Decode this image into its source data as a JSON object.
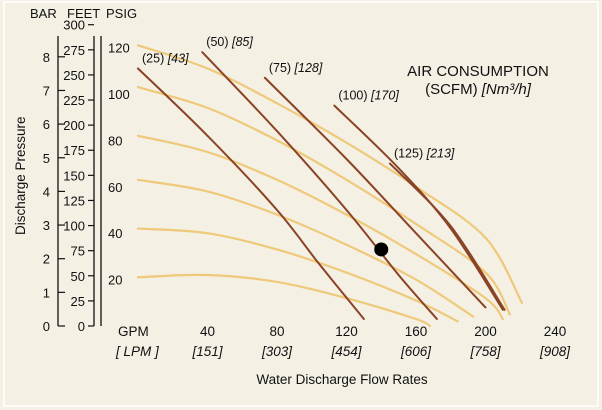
{
  "chart_data": {
    "type": "line",
    "title": "AIR CONSUMPTION",
    "subtitle_main": "(SCFM) ",
    "subtitle_unit": "[Nm³/h]",
    "xlabel": "Water Discharge Flow Rates",
    "ylabel": "Discharge Pressure",
    "x_unit_top": "GPM",
    "x_unit_bottom": "[ LPM ]",
    "xlim": [
      0,
      240
    ],
    "x_ticks": [
      {
        "gpm": "40",
        "lpm": "[151]",
        "v": 40
      },
      {
        "gpm": "80",
        "lpm": "[303]",
        "v": 80
      },
      {
        "gpm": "120",
        "lpm": "[454]",
        "v": 120
      },
      {
        "gpm": "160",
        "lpm": "[606]",
        "v": 160
      },
      {
        "gpm": "200",
        "lpm": "[758]",
        "v": 200
      },
      {
        "gpm": "240",
        "lpm": "[908]",
        "v": 240
      }
    ],
    "axis_headers": {
      "bar": "BAR",
      "feet": "FEET",
      "psig": "PSIG"
    },
    "ylim_psig": [
      0,
      125
    ],
    "bar_ticks": [
      "0",
      "1",
      "2",
      "3",
      "4",
      "5",
      "6",
      "7",
      "8"
    ],
    "feet_ticks": [
      "0",
      "25",
      "50",
      "75",
      "100",
      "125",
      "150",
      "175",
      "200",
      "225",
      "250",
      "275",
      "300"
    ],
    "psig_ticks": [
      "20",
      "40",
      "60",
      "80",
      "100",
      "120"
    ],
    "psig_tick_values": [
      20,
      40,
      60,
      80,
      100,
      120
    ],
    "pressure_curves": [
      {
        "psig": 120,
        "points": [
          [
            0,
            121
          ],
          [
            40,
            111
          ],
          [
            80,
            96
          ],
          [
            120,
            79
          ],
          [
            160,
            60
          ],
          [
            200,
            38
          ],
          [
            221,
            10
          ]
        ]
      },
      {
        "psig": 100,
        "points": [
          [
            0,
            103
          ],
          [
            40,
            94
          ],
          [
            80,
            80
          ],
          [
            120,
            63
          ],
          [
            160,
            44
          ],
          [
            200,
            23
          ],
          [
            214,
            5
          ]
        ]
      },
      {
        "psig": 80,
        "points": [
          [
            0,
            82
          ],
          [
            40,
            75
          ],
          [
            80,
            63
          ],
          [
            120,
            48
          ],
          [
            160,
            31
          ],
          [
            200,
            12
          ],
          [
            210,
            3
          ]
        ]
      },
      {
        "psig": 60,
        "points": [
          [
            0,
            63
          ],
          [
            40,
            58
          ],
          [
            80,
            48
          ],
          [
            120,
            35
          ],
          [
            160,
            20
          ],
          [
            193,
            4
          ]
        ]
      },
      {
        "psig": 40,
        "points": [
          [
            0,
            42
          ],
          [
            40,
            40
          ],
          [
            80,
            33
          ],
          [
            120,
            23
          ],
          [
            160,
            11
          ],
          [
            184,
            2
          ]
        ]
      },
      {
        "psig": 20,
        "points": [
          [
            0,
            21
          ],
          [
            40,
            22
          ],
          [
            80,
            19
          ],
          [
            120,
            12
          ],
          [
            160,
            3
          ],
          [
            168,
            0
          ]
        ]
      }
    ],
    "air_curves": [
      {
        "label": "(25)",
        "label_metric": "[43]",
        "points": [
          [
            0,
            111
          ],
          [
            40,
            82
          ],
          [
            80,
            50
          ],
          [
            104,
            27
          ],
          [
            130,
            3
          ]
        ]
      },
      {
        "label": "(50)",
        "label_metric": "[85]",
        "points": [
          [
            37,
            118
          ],
          [
            80,
            84
          ],
          [
            120,
            50
          ],
          [
            150,
            22
          ],
          [
            172,
            3
          ]
        ]
      },
      {
        "label": "(75)",
        "label_metric": "[128]",
        "points": [
          [
            73,
            107
          ],
          [
            120,
            72
          ],
          [
            160,
            40
          ],
          [
            200,
            8
          ]
        ]
      },
      {
        "label": "(100)",
        "label_metric": "[170]",
        "points": [
          [
            113,
            95
          ],
          [
            150,
            68
          ],
          [
            180,
            42
          ],
          [
            210,
            7
          ]
        ]
      },
      {
        "label": "(125)",
        "label_metric": "[213]",
        "points": [
          [
            145,
            70
          ],
          [
            180,
            43
          ],
          [
            211,
            7
          ]
        ]
      }
    ],
    "operating_point": {
      "gpm": 140,
      "psig": 33
    },
    "colors": {
      "pressure_curve": "#efc97a",
      "air_curve": "#8b4326",
      "background": "#f4f0e4",
      "marker": "#000000"
    }
  }
}
